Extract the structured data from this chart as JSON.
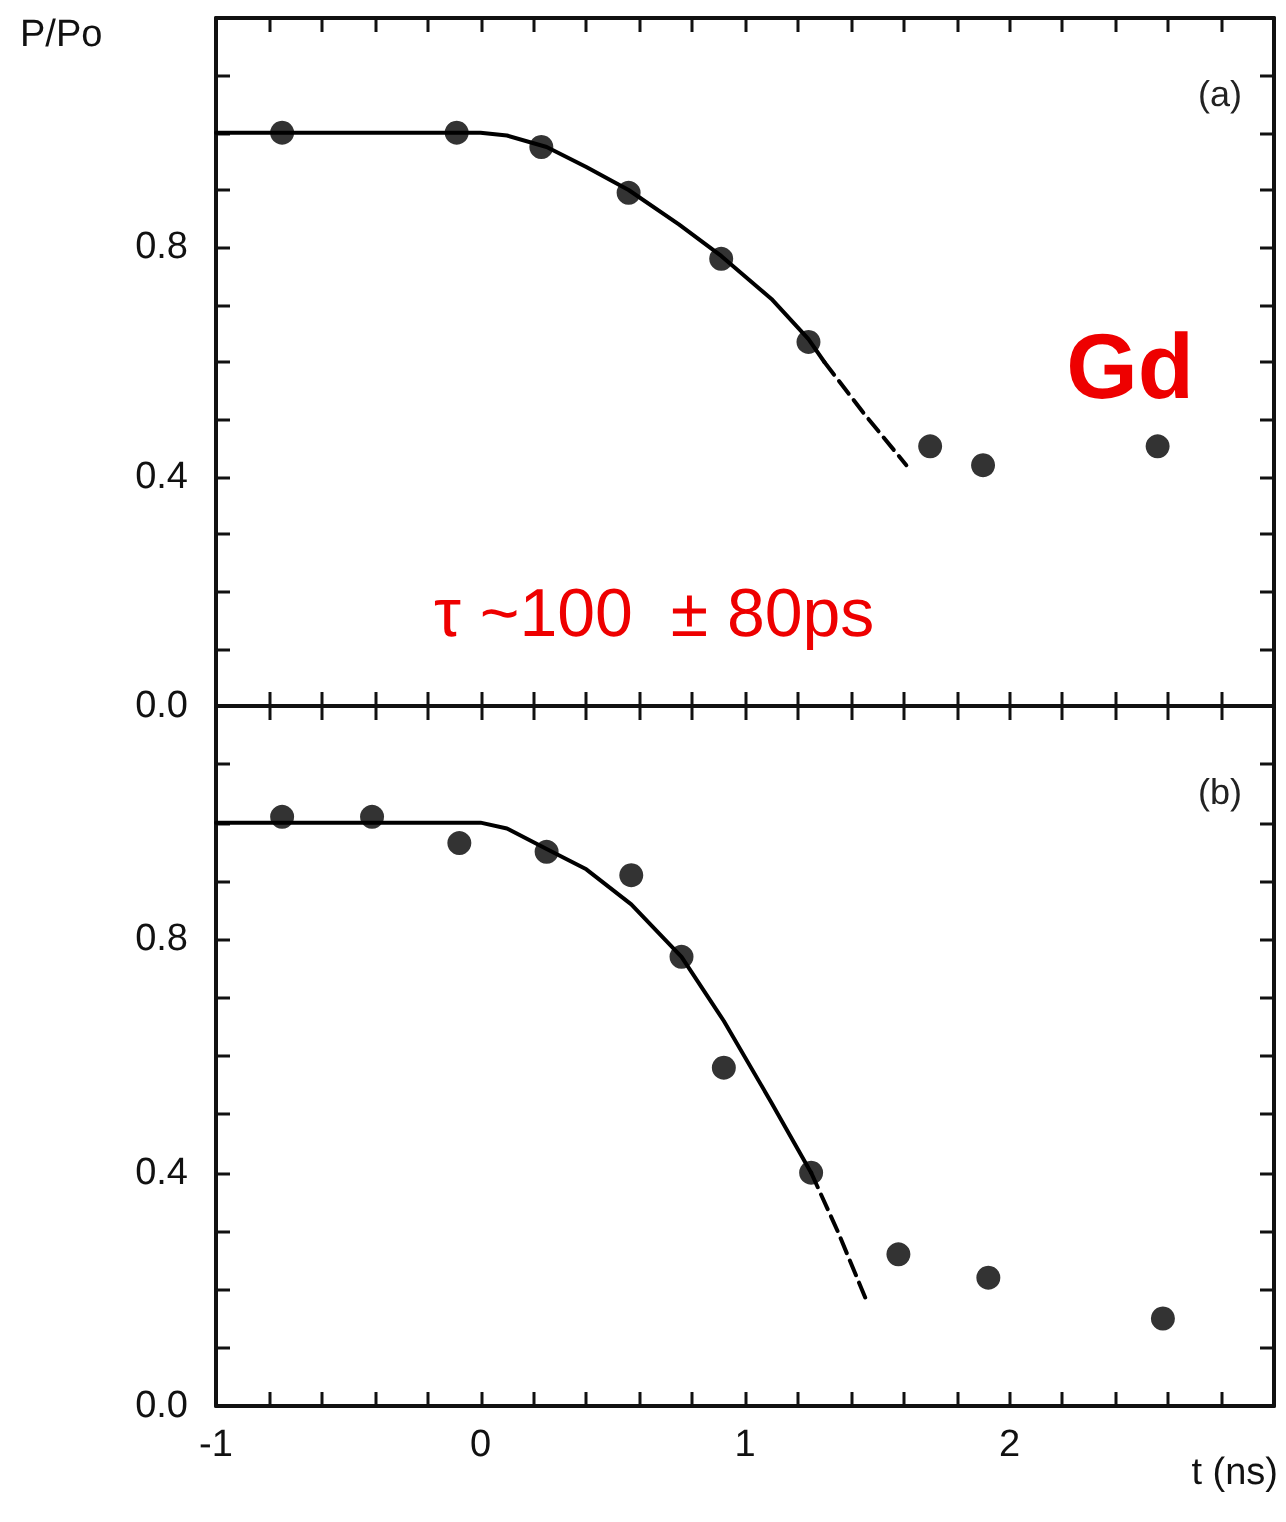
{
  "chart_data": [
    {
      "type": "scatter",
      "ylabel": "P/Po",
      "annotations": [
        "(a)",
        "Gd",
        "τ ~100  ± 80ps"
      ],
      "tick_labels": "y",
      "xlim": [
        -1,
        3
      ],
      "xticks": [
        -1,
        {
          "value": -0.8,
          "label": null
        },
        {
          "value": -0.6,
          "label": null
        },
        {
          "value": -0.4,
          "label": null
        },
        {
          "value": -0.2,
          "label": null
        },
        0,
        {
          "value": 0.2,
          "label": null
        },
        {
          "value": 0.4,
          "label": null
        },
        {
          "value": 0.6,
          "label": null
        },
        {
          "value": 0.8,
          "label": null
        },
        1,
        {
          "value": 1.2,
          "label": null
        },
        {
          "value": 1.4,
          "label": null
        },
        {
          "value": 1.6,
          "label": null
        },
        {
          "value": 1.8,
          "label": null
        },
        2,
        {
          "value": 2.2,
          "label": null
        },
        {
          "value": 2.4,
          "label": null
        },
        {
          "value": 2.6,
          "label": null
        },
        {
          "value": 2.8,
          "label": null
        }
      ],
      "ylim": [
        0,
        1.2
      ],
      "yticks": [
        {
          "value": 0,
          "label": "0.0"
        },
        {
          "value": 0.1,
          "label": null
        },
        {
          "value": 0.2,
          "label": null
        },
        {
          "value": 0.3,
          "label": null
        },
        {
          "value": 0.4,
          "label": "0.4"
        },
        {
          "value": 0.5,
          "label": null
        },
        {
          "value": 0.6,
          "label": null
        },
        {
          "value": 0.7,
          "label": null
        },
        {
          "value": 0.8,
          "label": "0.8"
        },
        {
          "value": 0.9,
          "label": null
        },
        {
          "value": 1.0,
          "label": null
        },
        {
          "value": 1.1,
          "label": null
        }
      ],
      "series": [
        {
          "marker": "circle",
          "color": "#000000",
          "x": [
            -0.75,
            -0.09,
            0.23,
            0.56,
            0.91,
            1.24,
            1.7,
            1.9,
            2.56
          ],
          "values": [
            1.0,
            1.0,
            0.975,
            0.895,
            0.78,
            0.635,
            0.453,
            0.42,
            0.453
          ]
        },
        {
          "type": "line",
          "marker": "none",
          "line_style": "solid",
          "color": "#000000",
          "x": [
            -1,
            -0.5,
            0,
            0.1,
            0.25,
            0.4,
            0.56,
            0.75,
            0.91,
            1.1,
            1.24,
            1.3
          ],
          "values": [
            1.0,
            1.0,
            1.0,
            0.995,
            0.975,
            0.94,
            0.9,
            0.84,
            0.785,
            0.71,
            0.64,
            0.6
          ]
        },
        {
          "type": "line",
          "marker": "none",
          "line_style": "dashed",
          "color": "#000000",
          "x": [
            1.3,
            1.45,
            1.61
          ],
          "values": [
            0.6,
            0.51,
            0.42
          ]
        }
      ]
    },
    {
      "type": "scatter",
      "xlabel": "t (ns)",
      "annotations": [
        "(b)"
      ],
      "xlim": [
        -1,
        3
      ],
      "xticks": [
        -1,
        {
          "value": -0.8,
          "label": null
        },
        {
          "value": -0.6,
          "label": null
        },
        {
          "value": -0.4,
          "label": null
        },
        {
          "value": -0.2,
          "label": null
        },
        0,
        {
          "value": 0.2,
          "label": null
        },
        {
          "value": 0.4,
          "label": null
        },
        {
          "value": 0.6,
          "label": null
        },
        {
          "value": 0.8,
          "label": null
        },
        1,
        {
          "value": 1.2,
          "label": null
        },
        {
          "value": 1.4,
          "label": null
        },
        {
          "value": 1.6,
          "label": null
        },
        {
          "value": 1.8,
          "label": null
        },
        2,
        {
          "value": 2.2,
          "label": null
        },
        {
          "value": 2.4,
          "label": null
        },
        {
          "value": 2.6,
          "label": null
        },
        {
          "value": 2.8,
          "label": null
        }
      ],
      "ylim": [
        0,
        1.2
      ],
      "yticks": [
        {
          "value": 0,
          "label": "0.0"
        },
        {
          "value": 0.1,
          "label": null
        },
        {
          "value": 0.2,
          "label": null
        },
        {
          "value": 0.3,
          "label": null
        },
        {
          "value": 0.4,
          "label": "0.4"
        },
        {
          "value": 0.5,
          "label": null
        },
        {
          "value": 0.6,
          "label": null
        },
        {
          "value": 0.7,
          "label": null
        },
        {
          "value": 0.8,
          "label": "0.8"
        },
        {
          "value": 0.9,
          "label": null
        },
        {
          "value": 1.0,
          "label": null
        },
        {
          "value": 1.1,
          "label": null
        }
      ],
      "series": [
        {
          "marker": "circle",
          "color": "#000000",
          "x": [
            -0.75,
            -0.41,
            -0.08,
            0.25,
            0.57,
            0.76,
            0.92,
            1.25,
            1.58,
            1.92,
            2.58
          ],
          "values": [
            1.01,
            1.01,
            0.965,
            0.95,
            0.91,
            0.77,
            0.58,
            0.4,
            0.26,
            0.22,
            0.15
          ]
        },
        {
          "type": "line",
          "marker": "none",
          "line_style": "solid",
          "color": "#000000",
          "x": [
            -1,
            -0.5,
            0,
            0.1,
            0.25,
            0.4,
            0.57,
            0.76,
            0.92,
            1.1,
            1.25
          ],
          "values": [
            1.0,
            1.0,
            1.0,
            0.99,
            0.955,
            0.92,
            0.86,
            0.77,
            0.66,
            0.52,
            0.4
          ]
        },
        {
          "type": "line",
          "marker": "none",
          "line_style": "dashed",
          "color": "#000000",
          "x": [
            1.25,
            1.35,
            1.46
          ],
          "values": [
            0.4,
            0.3,
            0.18
          ]
        }
      ]
    }
  ]
}
